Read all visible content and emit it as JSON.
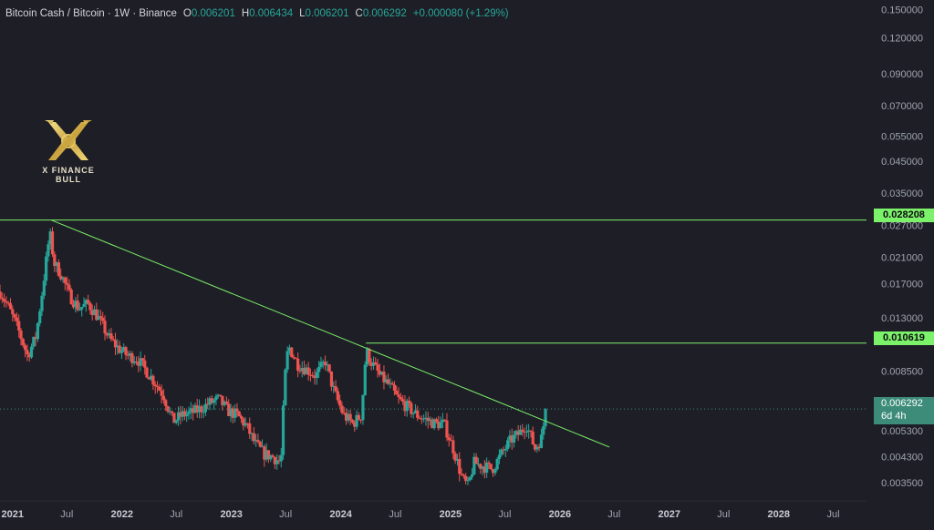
{
  "header": {
    "symbol": "Bitcoin Cash / Bitcoin · 1W · Binance",
    "o_label": "O",
    "o_value": "0.006201",
    "h_label": "H",
    "h_value": "0.006434",
    "l_label": "L",
    "l_value": "0.006201",
    "c_label": "C",
    "c_value": "0.006292",
    "change": "+0.000080 (+1.29%)"
  },
  "logo": {
    "text": "X FINANCE BULL"
  },
  "price_tags": {
    "resistance_high": "0.028208",
    "resistance_mid": "0.010619",
    "current_price": "0.006292",
    "countdown": "6d 4h"
  },
  "chart_data": {
    "type": "candlestick",
    "y_scale": "log",
    "ylim": [
      0.0031,
      0.155
    ],
    "x_range": [
      "2020-11-20",
      "2028-10-20"
    ],
    "grid": false,
    "y_ticks": [
      0.15,
      0.12,
      0.09,
      0.07,
      0.055,
      0.045,
      0.035,
      0.027,
      0.021,
      0.017,
      0.013,
      0.0085,
      0.0065,
      0.0053,
      0.0043,
      0.0035
    ],
    "y_tick_labels": [
      "0.150000",
      "0.120000",
      "0.090000",
      "0.070000",
      "0.055000",
      "0.045000",
      "0.035000",
      "0.027000",
      "0.021000",
      "0.017000",
      "0.013000",
      "0.008500",
      "0.006500",
      "0.005300",
      "0.004300",
      "0.003500"
    ],
    "x_ticks": [
      {
        "date": "2021-01-01",
        "label": "2021"
      },
      {
        "date": "2021-07-01",
        "label": "Jul"
      },
      {
        "date": "2022-01-01",
        "label": "2022"
      },
      {
        "date": "2022-07-01",
        "label": "Jul"
      },
      {
        "date": "2023-01-01",
        "label": "2023"
      },
      {
        "date": "2023-07-01",
        "label": "Jul"
      },
      {
        "date": "2024-01-01",
        "label": "2024"
      },
      {
        "date": "2024-07-01",
        "label": "Jul"
      },
      {
        "date": "2025-01-01",
        "label": "2025"
      },
      {
        "date": "2025-07-01",
        "label": "Jul"
      },
      {
        "date": "2026-01-01",
        "label": "2026"
      },
      {
        "date": "2026-07-01",
        "label": "Jul"
      },
      {
        "date": "2027-01-01",
        "label": "2027"
      },
      {
        "date": "2027-07-01",
        "label": "Jul"
      },
      {
        "date": "2028-01-01",
        "label": "2028"
      },
      {
        "date": "2028-07-01",
        "label": "Jul"
      }
    ],
    "horizontal_lines": [
      {
        "value": 0.028208,
        "from": "2020-11-20"
      },
      {
        "value": 0.010619,
        "from": "2024-03-25"
      }
    ],
    "trendline": {
      "start": {
        "date": "2021-05-10",
        "value": 0.0282
      },
      "end": {
        "date": "2026-06-15",
        "value": 0.00465
      }
    },
    "current_price": 0.006292,
    "close_path": [
      [
        "2020-11-20",
        0.016
      ],
      [
        "2020-12-20",
        0.014
      ],
      [
        "2021-01-20",
        0.0118
      ],
      [
        "2021-02-20",
        0.0096
      ],
      [
        "2021-03-20",
        0.0112
      ],
      [
        "2021-04-10",
        0.016
      ],
      [
        "2021-05-05",
        0.0255
      ],
      [
        "2021-05-20",
        0.02
      ],
      [
        "2021-06-10",
        0.0185
      ],
      [
        "2021-07-10",
        0.0155
      ],
      [
        "2021-08-10",
        0.014
      ],
      [
        "2021-09-10",
        0.0145
      ],
      [
        "2021-10-10",
        0.0132
      ],
      [
        "2021-11-20",
        0.011
      ],
      [
        "2021-12-20",
        0.0102
      ],
      [
        "2022-01-20",
        0.0096
      ],
      [
        "2022-02-20",
        0.0094
      ],
      [
        "2022-03-20",
        0.0086
      ],
      [
        "2022-04-20",
        0.0078
      ],
      [
        "2022-05-20",
        0.007
      ],
      [
        "2022-06-20",
        0.0057
      ],
      [
        "2022-07-20",
        0.006
      ],
      [
        "2022-08-20",
        0.0061
      ],
      [
        "2022-09-20",
        0.0063
      ],
      [
        "2022-10-20",
        0.0066
      ],
      [
        "2022-11-20",
        0.0068
      ],
      [
        "2022-12-20",
        0.0062
      ],
      [
        "2023-01-20",
        0.006
      ],
      [
        "2023-02-20",
        0.0055
      ],
      [
        "2023-03-20",
        0.0048
      ],
      [
        "2023-04-20",
        0.0044
      ],
      [
        "2023-05-20",
        0.0043
      ],
      [
        "2023-06-15",
        0.0041
      ],
      [
        "2023-06-28",
        0.008
      ],
      [
        "2023-07-10",
        0.0104
      ],
      [
        "2023-08-10",
        0.009
      ],
      [
        "2023-09-10",
        0.0086
      ],
      [
        "2023-10-10",
        0.0082
      ],
      [
        "2023-11-10",
        0.0092
      ],
      [
        "2023-12-10",
        0.0072
      ],
      [
        "2024-01-10",
        0.006
      ],
      [
        "2024-02-10",
        0.0056
      ],
      [
        "2024-03-10",
        0.006
      ],
      [
        "2024-03-25",
        0.01
      ],
      [
        "2024-04-10",
        0.0092
      ],
      [
        "2024-05-10",
        0.0082
      ],
      [
        "2024-06-10",
        0.0076
      ],
      [
        "2024-07-10",
        0.0068
      ],
      [
        "2024-08-10",
        0.0064
      ],
      [
        "2024-09-10",
        0.006
      ],
      [
        "2024-10-10",
        0.0058
      ],
      [
        "2024-11-10",
        0.0056
      ],
      [
        "2024-12-10",
        0.0056
      ],
      [
        "2025-01-10",
        0.0046
      ],
      [
        "2025-02-10",
        0.0036
      ],
      [
        "2025-03-01",
        0.0034
      ],
      [
        "2025-03-20",
        0.0041
      ],
      [
        "2025-04-20",
        0.004
      ],
      [
        "2025-05-20",
        0.0039
      ],
      [
        "2025-06-20",
        0.0044
      ],
      [
        "2025-07-20",
        0.0049
      ],
      [
        "2025-08-20",
        0.0052
      ],
      [
        "2025-09-10",
        0.0056
      ],
      [
        "2025-10-10",
        0.0046
      ],
      [
        "2025-11-01",
        0.005
      ],
      [
        "2025-11-15",
        0.006292
      ]
    ]
  }
}
